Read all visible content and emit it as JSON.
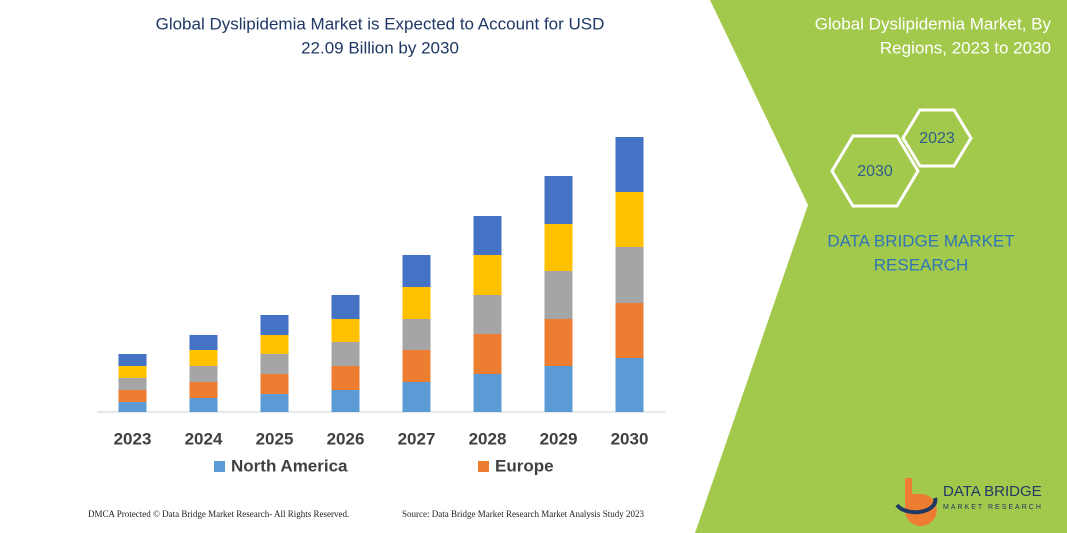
{
  "chart_data": {
    "type": "stacked-bar",
    "title": [
      "Global Dyslipidemia Market is Expected to Account for USD",
      "22.09 Billion by 2030"
    ],
    "categories": [
      "2023",
      "2024",
      "2025",
      "2026",
      "2027",
      "2028",
      "2029",
      "2030"
    ],
    "series": [
      {
        "name": "North America",
        "color": "#5b9bd5",
        "values": [
          10,
          14,
          18,
          22,
          30,
          38,
          46,
          54
        ]
      },
      {
        "name": "Europe",
        "color": "#ed7d31",
        "values": [
          12,
          16,
          20,
          24,
          32,
          40,
          47,
          55
        ]
      },
      {
        "color": "#a5a5a5",
        "values": [
          12,
          16,
          20,
          24,
          31,
          39,
          48,
          56
        ]
      },
      {
        "color": "#ffc000",
        "values": [
          12,
          16,
          19,
          23,
          32,
          40,
          47,
          55
        ]
      },
      {
        "color": "#4472c4",
        "values": [
          12,
          15,
          20,
          24,
          32,
          39,
          48,
          55
        ]
      }
    ]
  },
  "side_panel": {
    "title": [
      "Global Dyslipidemia Market, By",
      "Regions, 2023 to 2030"
    ],
    "badges": [
      "2030",
      "2023"
    ],
    "brand": [
      "DATA BRIDGE MARKET",
      "RESEARCH"
    ]
  },
  "logo": {
    "name": "DATA BRIDGE",
    "tagline": "MARKET RESEARCH"
  },
  "footer": {
    "left": "DMCA Protected © Data Bridge Market Research- All Rights Reserved.",
    "right": "Source: Data Bridge Market Research Market Analysis Study 2023"
  }
}
